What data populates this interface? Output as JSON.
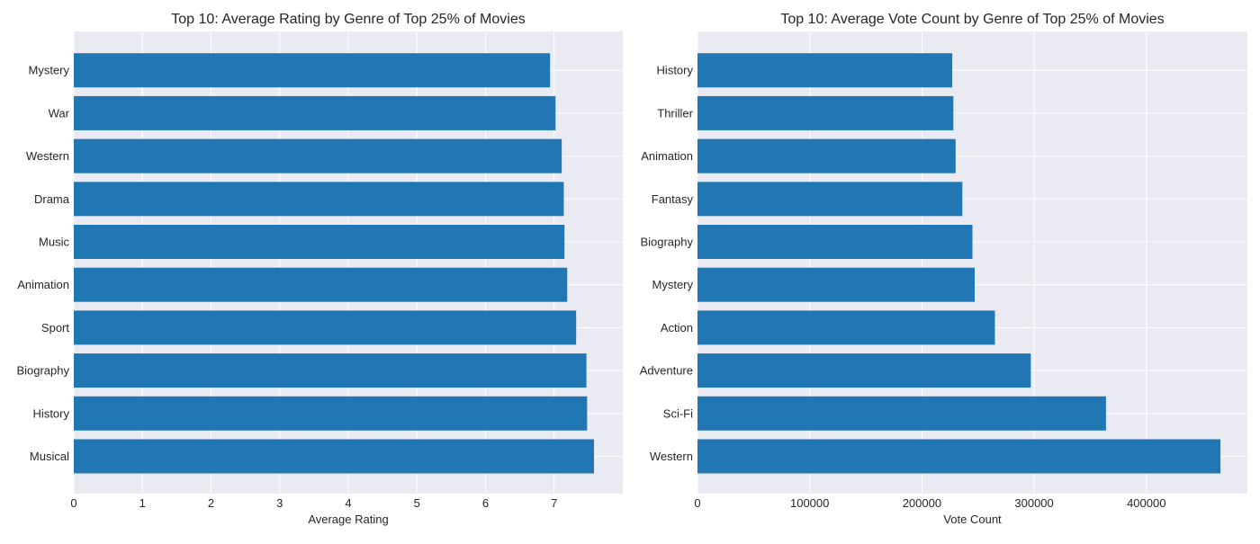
{
  "colors": {
    "bar": "#2077b4",
    "plot_bg": "#eaeaf2",
    "grid": "#ffffff",
    "text": "#262626"
  },
  "chart_data": [
    {
      "type": "bar",
      "orientation": "horizontal",
      "title": "Top 10: Average Rating by Genre of Top 25% of Movies",
      "xlabel": "Average Rating",
      "ylabel": "",
      "categories": [
        "Musical",
        "History",
        "Biography",
        "Sport",
        "Animation",
        "Music",
        "Drama",
        "Western",
        "War",
        "Mystery"
      ],
      "values": [
        7.58,
        7.48,
        7.47,
        7.32,
        7.19,
        7.15,
        7.14,
        7.11,
        7.02,
        6.94
      ],
      "xlim": [
        0,
        8
      ],
      "xticks": [
        "0",
        "1",
        "2",
        "3",
        "4",
        "5",
        "6",
        "7"
      ],
      "grid": true
    },
    {
      "type": "bar",
      "orientation": "horizontal",
      "title": "Top 10: Average Vote Count by Genre of Top 25% of Movies",
      "xlabel": "Vote Count",
      "ylabel": "",
      "categories": [
        "Western",
        "Sci-Fi",
        "Adventure",
        "Action",
        "Mystery",
        "Biography",
        "Fantasy",
        "Animation",
        "Thriller",
        "History"
      ],
      "values": [
        466000,
        364000,
        297000,
        265000,
        247000,
        245000,
        236000,
        230000,
        228000,
        227000
      ],
      "xlim": [
        0,
        490000
      ],
      "xticks": [
        "0",
        "100000",
        "200000",
        "300000",
        "400000"
      ],
      "grid": true
    }
  ]
}
